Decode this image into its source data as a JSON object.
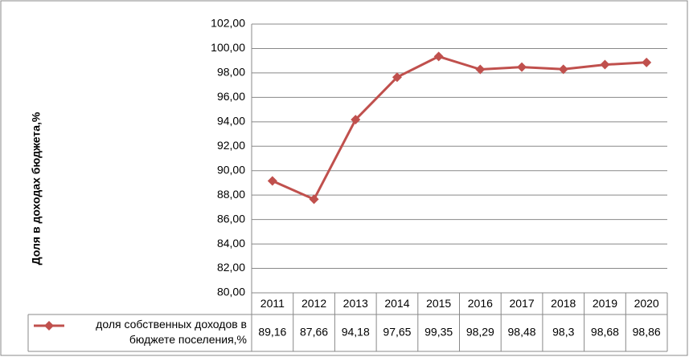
{
  "chart_data": {
    "type": "line",
    "y_label": "Доля в доходах бюджета,%",
    "categories": [
      "2011",
      "2012",
      "2013",
      "2014",
      "2015",
      "2016",
      "2017",
      "2018",
      "2019",
      "2020"
    ],
    "series": [
      {
        "name": "доля  собственных доходов в бюджете поселения,%",
        "color": "#c0504d",
        "values": [
          89.16,
          87.66,
          94.18,
          97.65,
          99.35,
          98.29,
          98.48,
          98.3,
          98.68,
          98.86
        ],
        "value_labels": [
          "89,16",
          "87,66",
          "94,18",
          "97,65",
          "99,35",
          "98,29",
          "98,48",
          "98,3",
          "98,68",
          "98,86"
        ]
      }
    ],
    "ylim": [
      80,
      102
    ],
    "yticks": [
      {
        "value": 80,
        "label": "80,00"
      },
      {
        "value": 82,
        "label": "82,00"
      },
      {
        "value": 84,
        "label": "84,00"
      },
      {
        "value": 86,
        "label": "86,00"
      },
      {
        "value": 88,
        "label": "88,00"
      },
      {
        "value": 90,
        "label": "90,00"
      },
      {
        "value": 92,
        "label": "92,00"
      },
      {
        "value": 94,
        "label": "94,00"
      },
      {
        "value": 96,
        "label": "96,00"
      },
      {
        "value": 98,
        "label": "98,00"
      },
      {
        "value": 100,
        "label": "100,00"
      },
      {
        "value": 102,
        "label": "102,00"
      }
    ],
    "grid": true
  }
}
